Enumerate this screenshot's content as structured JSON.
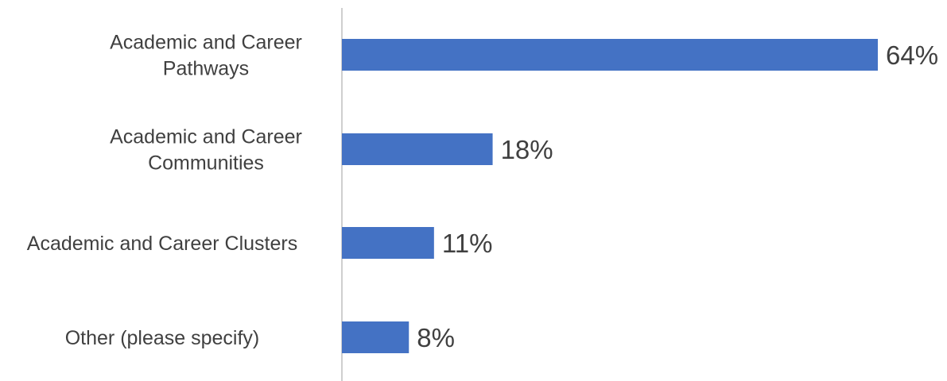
{
  "chart_data": {
    "type": "bar",
    "orientation": "horizontal",
    "categories": [
      [
        "Academic and Career",
        "Pathways"
      ],
      [
        "Academic and Career",
        "Communities"
      ],
      [
        "Academic and Career Clusters"
      ],
      [
        "Other (please specify)"
      ]
    ],
    "values": [
      64,
      18,
      11,
      8
    ],
    "value_labels": [
      "64%",
      "18%",
      "11%",
      "8%"
    ],
    "xlim": [
      0,
      64
    ],
    "grid": false,
    "legend": "none",
    "colors": {
      "bar": "#4472C4",
      "axis": "#BFBFBF",
      "text": "#404040"
    }
  }
}
